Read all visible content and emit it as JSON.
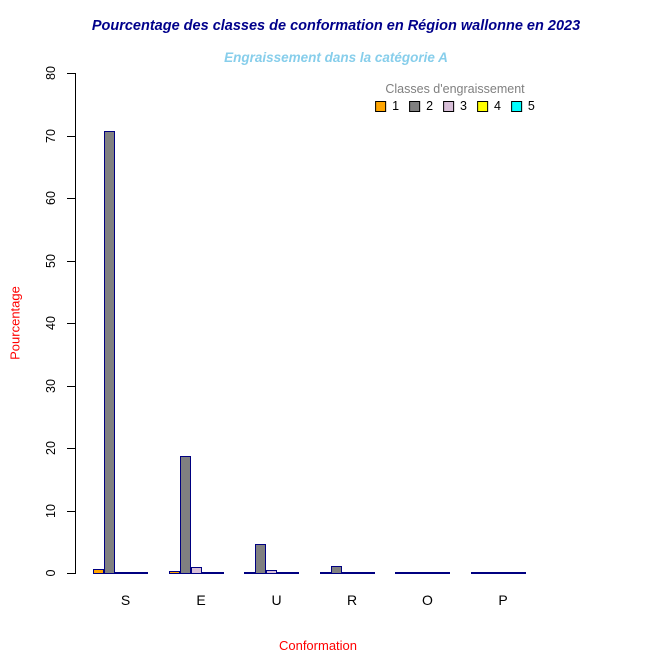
{
  "title": "Pourcentage des classes de conformation en Région wallonne en 2023",
  "subtitle": "Engraissement dans la catégorie A",
  "colors": {
    "title": "#00008B",
    "subtitle": "#87CEEB",
    "axis_titles": "#FF0000",
    "legend_title": "#808080",
    "bar_border": "#000080",
    "axis": "#000000"
  },
  "legend": {
    "title": "Classes d'engraissement",
    "entries": [
      {
        "label": "1",
        "color": "#FFA500"
      },
      {
        "label": "2",
        "color": "#808080"
      },
      {
        "label": "3",
        "color": "#D8BFD8"
      },
      {
        "label": "4",
        "color": "#FFFF00"
      },
      {
        "label": "5",
        "color": "#00FFFF"
      }
    ]
  },
  "chart_data": {
    "type": "bar",
    "title": "Pourcentage des classes de conformation en Région wallonne en 2023",
    "subtitle": "Engraissement dans la catégorie A",
    "xlabel": "Conformation",
    "ylabel": "Pourcentage",
    "ylim": [
      0,
      80
    ],
    "yticks": [
      0,
      10,
      20,
      30,
      40,
      50,
      60,
      70,
      80
    ],
    "grid": false,
    "legend_title": "Classes d'engraissement",
    "legend_position": "top-right",
    "categories": [
      "S",
      "E",
      "U",
      "R",
      "O",
      "P"
    ],
    "series": [
      {
        "name": "1",
        "color": "#FFA500",
        "values": [
          0.8,
          0.5,
          0.2,
          0.15,
          0.1,
          0.05
        ]
      },
      {
        "name": "2",
        "color": "#808080",
        "values": [
          70.9,
          18.9,
          4.8,
          1.3,
          0.4,
          0.2
        ]
      },
      {
        "name": "3",
        "color": "#D8BFD8",
        "values": [
          0.4,
          1.1,
          0.7,
          0.3,
          0.15,
          0.05
        ]
      },
      {
        "name": "4",
        "color": "#FFFF00",
        "values": [
          0.05,
          0.05,
          0.05,
          0.02,
          0.02,
          0.01
        ]
      },
      {
        "name": "5",
        "color": "#00FFFF",
        "values": [
          0.05,
          0.05,
          0.05,
          0.02,
          0.02,
          0.01
        ]
      }
    ]
  }
}
